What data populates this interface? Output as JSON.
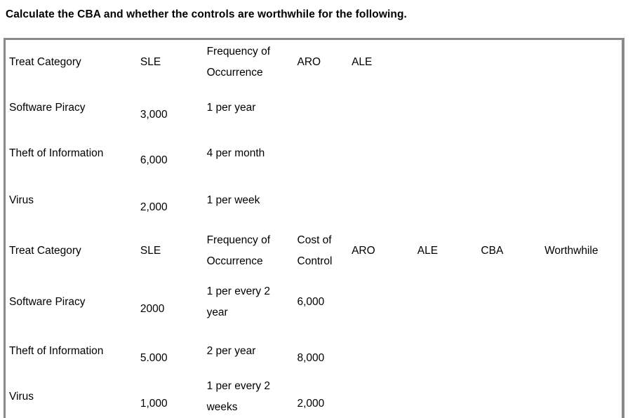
{
  "page": {
    "title": "Calculate the CBA and whether the controls are worthwhile for the following."
  },
  "table": {
    "section1": {
      "header": {
        "category": "Treat Category",
        "sle": "SLE",
        "frequency": "Frequency of Occurrence",
        "aro": "ARO",
        "ale": "ALE"
      },
      "rows": [
        {
          "category": "Software Piracy",
          "sle": "3,000",
          "frequency": "1 per year",
          "aro": "",
          "ale": ""
        },
        {
          "category": "Theft of Information",
          "sle": "6,000",
          "frequency": "4 per month",
          "aro": "",
          "ale": ""
        },
        {
          "category": "Virus",
          "sle": "2,000",
          "frequency": "1 per week",
          "aro": "",
          "ale": ""
        }
      ]
    },
    "section2": {
      "header": {
        "category": "Treat Category",
        "sle": "SLE",
        "frequency": "Frequency of Occurrence",
        "cost": "Cost of Control",
        "aro": "ARO",
        "ale": "ALE",
        "cba": "CBA",
        "worthwhile": "Worthwhile"
      },
      "rows": [
        {
          "category": "Software Piracy",
          "sle": "2000",
          "frequency": "1 per every 2 year",
          "cost": "6,000",
          "aro": "",
          "ale": "",
          "cba": "",
          "worthwhile": ""
        },
        {
          "category": "Theft of Information",
          "sle": "5.000",
          "frequency": "2 per year",
          "cost": "8,000",
          "aro": "",
          "ale": "",
          "cba": "",
          "worthwhile": ""
        },
        {
          "category": "Virus",
          "sle": "1,000",
          "frequency": "1 per every 2 weeks",
          "cost": "2,000",
          "aro": "",
          "ale": "",
          "cba": "",
          "worthwhile": ""
        }
      ]
    }
  }
}
